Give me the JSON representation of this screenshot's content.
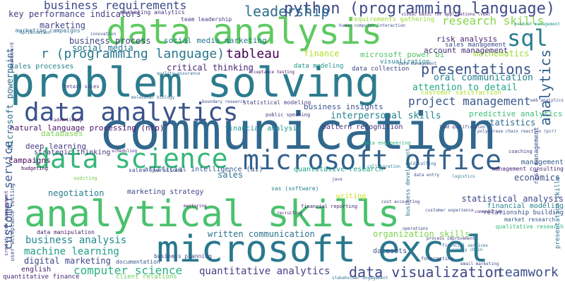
{
  "cloud": {
    "words": [
      {
        "text": "communication",
        "color": "#31688e"
      },
      {
        "text": "problem solving",
        "color": "#2c7b8e"
      },
      {
        "text": "data analysis",
        "color": "#5ec962"
      },
      {
        "text": "analytical skills",
        "color": "#4ac16d"
      },
      {
        "text": "microsoft excel",
        "color": "#2a788e"
      },
      {
        "text": "microsoft office",
        "color": "#33628d"
      },
      {
        "text": "data analytics",
        "color": "#3b528b"
      },
      {
        "text": "data science",
        "color": "#35b779"
      },
      {
        "text": "python (programming language)",
        "color": "#3e4a89"
      },
      {
        "text": "sql",
        "color": "#287c8e"
      },
      {
        "text": "leadership",
        "color": "#2e6e8e"
      },
      {
        "text": "business requirements",
        "color": "#3e4989"
      },
      {
        "text": "key performance indicators",
        "color": "#433e85"
      },
      {
        "text": "r (programming language)",
        "color": "#2a778e"
      },
      {
        "text": "tableau",
        "color": "#440154"
      },
      {
        "text": "research skills",
        "color": "#86d549"
      },
      {
        "text": "project management",
        "color": "#39568c"
      },
      {
        "text": "presentations",
        "color": "#3b528b"
      },
      {
        "text": "analytics",
        "color": "#34618d"
      },
      {
        "text": "data visualization",
        "color": "#404688"
      },
      {
        "text": "teamwork",
        "color": "#3b518b"
      },
      {
        "text": "computer science",
        "color": "#2ab07f"
      },
      {
        "text": "quantitative analytics",
        "color": "#424186"
      },
      {
        "text": "machine learning",
        "color": "#1f9a8a"
      },
      {
        "text": "business analysis",
        "color": "#23888e"
      },
      {
        "text": "digital marketing",
        "color": "#3f4788"
      },
      {
        "text": "customer service",
        "color": "#38598c"
      },
      {
        "text": "microsoft powerpoint",
        "color": "#2f6c8e"
      },
      {
        "text": "critical thinking",
        "color": "#482475"
      },
      {
        "text": "marketing",
        "color": "#3f4889"
      },
      {
        "text": "business process",
        "color": "#414487"
      },
      {
        "text": "social media",
        "color": "#2a768e"
      },
      {
        "text": "sales processes",
        "color": "#26828e"
      },
      {
        "text": "finance",
        "color": "#b5de2b"
      },
      {
        "text": "microsoft power bi",
        "color": "#52c569"
      },
      {
        "text": "mathematics",
        "color": "#a0da39"
      },
      {
        "text": "oral communication",
        "color": "#26818e"
      },
      {
        "text": "attention to detail",
        "color": "#22a785"
      },
      {
        "text": "interpersonal skills",
        "color": "#25838e"
      },
      {
        "text": "statistics",
        "color": "#31668e"
      },
      {
        "text": "business insights",
        "color": "#3a548c"
      },
      {
        "text": "predictive analytics",
        "color": "#3dbc74"
      },
      {
        "text": "natural language processing (nlp)",
        "color": "#481467"
      },
      {
        "text": "financial analysis",
        "color": "#21918c"
      },
      {
        "text": "pattern recognition",
        "color": "#46337e"
      },
      {
        "text": "deep learning",
        "color": "#443a83"
      },
      {
        "text": "strategic thinking",
        "color": "#453781"
      },
      {
        "text": "campaigns",
        "color": "#46085c"
      },
      {
        "text": "databases",
        "color": "#7ad151"
      },
      {
        "text": "economics",
        "color": "#3e4c8a"
      },
      {
        "text": "negotiation",
        "color": "#287d8e"
      },
      {
        "text": "marketing strategy",
        "color": "#3f4788"
      },
      {
        "text": "sales",
        "color": "#2c728e"
      },
      {
        "text": "artificial intelligence (ai)",
        "color": "#39558c"
      },
      {
        "text": "quantitative research",
        "color": "#1fa088"
      },
      {
        "text": "statistical analysis",
        "color": "#404588"
      },
      {
        "text": "financial modeling",
        "color": "#27808e"
      },
      {
        "text": "relationship building",
        "color": "#3c4f8a"
      },
      {
        "text": "written communication",
        "color": "#2c738e"
      },
      {
        "text": "organization skills",
        "color": "#7fd34e"
      },
      {
        "text": "english",
        "color": "#481c6e"
      },
      {
        "text": "quantitative finance",
        "color": "#482677"
      },
      {
        "text": "datasets",
        "color": "#3b528b"
      },
      {
        "text": "documentation",
        "color": "#39568c"
      },
      {
        "text": "client relations",
        "color": "#6ccd5a"
      },
      {
        "text": "writing",
        "color": "#c8e020"
      },
      {
        "text": "risk analysis",
        "color": "#482878"
      },
      {
        "text": "sales management",
        "color": "#3e4a89"
      },
      {
        "text": "account management",
        "color": "#472d7b"
      },
      {
        "text": "social media marketing",
        "color": "#2a788e"
      },
      {
        "text": "team leadership",
        "color": "#453882"
      },
      {
        "text": "marketing analytics",
        "color": "#46337e"
      },
      {
        "text": "marketing campaigns",
        "color": "#31688e"
      },
      {
        "text": "dashboard",
        "color": "#433e85"
      },
      {
        "text": "data modeling",
        "color": "#1f958b"
      },
      {
        "text": "data collection",
        "color": "#414487"
      },
      {
        "text": "visualization",
        "color": "#277f8e"
      },
      {
        "text": "customer satisfaction",
        "color": "#addc30"
      },
      {
        "text": "management",
        "color": "#365c8d"
      },
      {
        "text": "risk management",
        "color": "#3e4989"
      },
      {
        "text": "management consulting",
        "color": "#482475"
      },
      {
        "text": "market research",
        "color": "#375a8c"
      },
      {
        "text": "qualitative research",
        "color": "#35b779"
      },
      {
        "text": "business development",
        "color": "#2d708e"
      },
      {
        "text": "presentation skills",
        "color": "#2c728e"
      },
      {
        "text": "sales operations",
        "color": "#3b528b"
      },
      {
        "text": "public speaking",
        "color": "#453781"
      },
      {
        "text": "statistical modeling",
        "color": "#433e85"
      },
      {
        "text": "data engineering",
        "color": "#2db27d"
      },
      {
        "text": "financial reporting",
        "color": "#482173"
      },
      {
        "text": "data manipulation",
        "color": "#481b6d"
      },
      {
        "text": "business planning",
        "color": "#3f4788"
      },
      {
        "text": "forecasting",
        "color": "#3e4c8a"
      },
      {
        "text": "user acceptance testing",
        "color": "#3b528b"
      },
      {
        "text": "credit risk management",
        "color": "#482878"
      },
      {
        "text": "sas (software)",
        "color": "#25848e"
      },
      {
        "text": "requirements gathering",
        "color": "#9bd93c"
      },
      {
        "text": "coaching",
        "color": "#433d84"
      },
      {
        "text": "budgeting",
        "color": "#440154"
      },
      {
        "text": "retail sales",
        "color": "#443983"
      },
      {
        "text": "auditing",
        "color": "#7ad151"
      },
      {
        "text": "scheduling",
        "color": "#472a7a"
      },
      {
        "text": "molecular biology",
        "color": "#31688e"
      },
      {
        "text": "quality assurance",
        "color": "#31688e"
      },
      {
        "text": "acceptance testing",
        "color": "#481769"
      },
      {
        "text": "boundary research",
        "color": "#3e4a89"
      },
      {
        "text": "human computer interaction",
        "color": "#3b528b"
      },
      {
        "text": "visual basic for applications (vba)",
        "color": "#482576"
      },
      {
        "text": "polymerase chain reaction (pcr)",
        "color": "#3d4d8a"
      },
      {
        "text": "product management",
        "color": "#1f968b"
      },
      {
        "text": "data management",
        "color": "#365d8d"
      },
      {
        "text": "web analytics",
        "color": "#3f4889"
      },
      {
        "text": "cost accounting",
        "color": "#453781"
      },
      {
        "text": "customer experience",
        "color": "#3c4f8a"
      },
      {
        "text": "supply chain",
        "color": "#2a788e"
      },
      {
        "text": "stakeholder engagement",
        "color": "#2d718e"
      },
      {
        "text": "data entry",
        "color": "#3e4a89"
      },
      {
        "text": "lead qualification",
        "color": "#404387"
      },
      {
        "text": "process improvement",
        "color": "#453882"
      },
      {
        "text": "commodities",
        "color": "#482878"
      },
      {
        "text": "financial services",
        "color": "#2f6b8e"
      },
      {
        "text": "cold calling",
        "color": "#31688e"
      },
      {
        "text": "email marketing",
        "color": "#3e4989"
      },
      {
        "text": "java",
        "color": "#3e4a89"
      },
      {
        "text": "collaboration",
        "color": "#277f8e"
      },
      {
        "text": "advertising",
        "color": "#440154"
      },
      {
        "text": "optimization",
        "color": "#2c728e"
      },
      {
        "text": "innovation",
        "color": "#3b528b"
      },
      {
        "text": "mentoring",
        "color": "#481467"
      },
      {
        "text": "recruiting",
        "color": "#482878"
      },
      {
        "text": "operations",
        "color": "#3f4788"
      },
      {
        "text": "logistics",
        "color": "#2a788e"
      }
    ]
  }
}
